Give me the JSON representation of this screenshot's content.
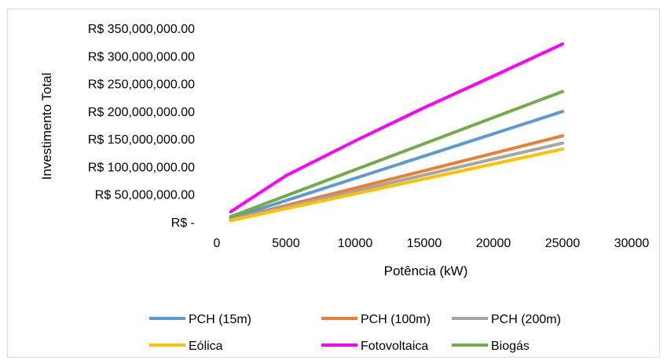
{
  "chart_data": {
    "type": "line",
    "xlabel": "Potência (kW)",
    "ylabel": "Investimento Total",
    "xlim": [
      0,
      30000
    ],
    "ylim": [
      0,
      350000000
    ],
    "x_ticks": [
      0,
      5000,
      10000,
      15000,
      20000,
      25000,
      30000
    ],
    "x_tick_labels": [
      "0",
      "5000",
      "10000",
      "15000",
      "20000",
      "25000",
      "30000"
    ],
    "y_ticks": [
      0,
      50000000,
      100000000,
      150000000,
      200000000,
      250000000,
      300000000,
      350000000
    ],
    "y_tick_labels": [
      "R$ -",
      "R$ 50,000,000.00",
      "R$ 100,000,000.00",
      "R$ 150,000,000.00",
      "R$ 200,000,000.00",
      "R$ 250,000,000.00",
      "R$ 300,000,000.00",
      "R$ 350,000,000.00"
    ],
    "grid": false,
    "legend_position": "bottom",
    "series": [
      {
        "name": "PCH (15m)",
        "color": "#5b9bd5",
        "x": [
          1000,
          25000
        ],
        "y": [
          8000000,
          201000000
        ]
      },
      {
        "name": "PCH (100m)",
        "color": "#ed7d31",
        "x": [
          1000,
          25000
        ],
        "y": [
          6000000,
          157000000
        ]
      },
      {
        "name": "PCH (200m)",
        "color": "#a5a5a5",
        "x": [
          1000,
          25000
        ],
        "y": [
          5500000,
          144000000
        ]
      },
      {
        "name": "Eólica",
        "color": "#ffc000",
        "x": [
          1000,
          25000
        ],
        "y": [
          4000000,
          133000000
        ]
      },
      {
        "name": "Fotovoltaica",
        "color": "#ff00ff",
        "x": [
          1000,
          5000,
          10000,
          15000,
          20000,
          25000
        ],
        "y": [
          20000000,
          85000000,
          148000000,
          208000000,
          265000000,
          323000000
        ]
      },
      {
        "name": "Biogás",
        "color": "#70ad47",
        "x": [
          1000,
          25000
        ],
        "y": [
          11000000,
          237000000
        ]
      }
    ]
  }
}
